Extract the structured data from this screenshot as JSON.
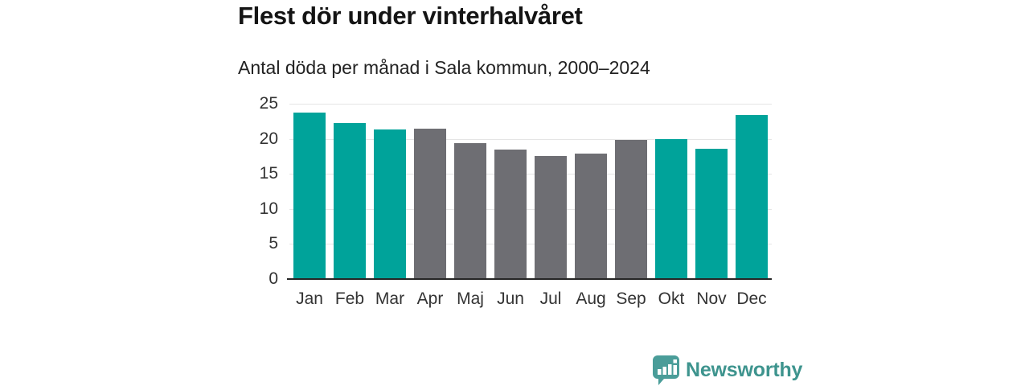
{
  "header": {
    "title": "Flest dör under vinterhalvåret",
    "subtitle": "Antal döda per månad i Sala kommun, 2000–2024"
  },
  "branding": {
    "name": "Newsworthy",
    "text_color": "#3e948e",
    "bubble_color": "#4a9d99",
    "icon": "bar-chart-speech-bubble-icon"
  },
  "chart_data": {
    "type": "bar",
    "title": "Flest dör under vinterhalvåret",
    "subtitle": "Antal döda per månad i Sala kommun, 2000–2024",
    "categories": [
      "Jan",
      "Feb",
      "Mar",
      "Apr",
      "Maj",
      "Jun",
      "Jul",
      "Aug",
      "Sep",
      "Okt",
      "Nov",
      "Dec"
    ],
    "values": [
      23.7,
      22.3,
      21.3,
      21.4,
      19.4,
      18.5,
      17.6,
      17.9,
      19.8,
      19.9,
      18.6,
      23.4
    ],
    "bar_colors": [
      "#00a39a",
      "#00a39a",
      "#00a39a",
      "#6e6e73",
      "#6e6e73",
      "#6e6e73",
      "#6e6e73",
      "#6e6e73",
      "#6e6e73",
      "#00a39a",
      "#00a39a",
      "#00a39a"
    ],
    "palette": {
      "winter_months": "#00a39a",
      "summer_months": "#6e6e73"
    },
    "xlabel": "",
    "ylabel": "",
    "ylim": [
      0,
      25
    ],
    "yticks": [
      0,
      5,
      10,
      15,
      20,
      25
    ],
    "grid": true,
    "gridline_color": "#e5e5e5",
    "axis_line_color": "#262626",
    "tick_label_color": "#333333",
    "legend": false
  }
}
